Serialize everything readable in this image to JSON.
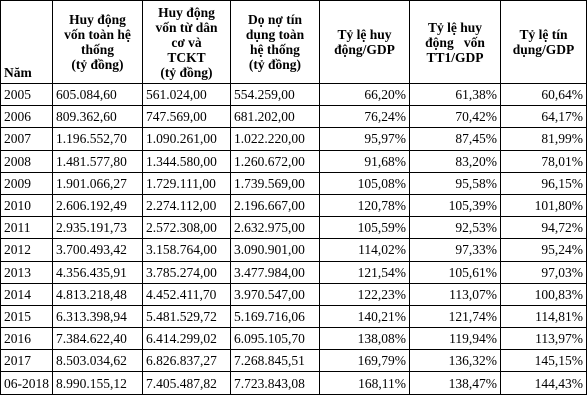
{
  "table": {
    "headers": [
      "Năm",
      "Huy động vốn toàn hệ thống (tỷ đồng)",
      "Huy động vốn từ dân cơ và TCKT (tỷ đồng)",
      "Dọ nợ tín dụng toàn hệ thống (tỷ đồng)",
      "Tỷ lệ huy động/GDP",
      "Tỷ lệ huy động vốn TT1/GDP",
      "Tỷ lệ tín dụng/GDP"
    ],
    "header_lines": [
      [
        "Năm"
      ],
      [
        "Huy động",
        "vốn toàn hệ",
        "thống",
        "(tỷ đồng)"
      ],
      [
        "Huy động",
        "vốn từ dân",
        "cơ và",
        "TCKT",
        "(tỷ đồng)"
      ],
      [
        "Dọ nợ tín",
        "dụng toàn",
        "hệ thống",
        "(tỷ đồng)"
      ],
      [
        "Tỷ lệ huy",
        "động/GDP"
      ],
      [
        "Tỷ lệ huy",
        "động   vốn",
        "TT1/GDP"
      ],
      [
        "Tỷ lệ tín",
        "dụng/GDP"
      ]
    ],
    "rows": [
      [
        "2005",
        "605.084,60",
        "561.024,00",
        "554.259,00",
        "66,20%",
        "61,38%",
        "60,64%"
      ],
      [
        "2006",
        "809.362,60",
        "747.569,00",
        "681.202,00",
        "76,24%",
        "70,42%",
        "64,17%"
      ],
      [
        "2007",
        "1.196.552,70",
        "1.090.261,00",
        "1.022.220,00",
        "95,97%",
        "87,45%",
        "81,99%"
      ],
      [
        "2008",
        "1.481.577,80",
        "1.344.580,00",
        "1.260.672,00",
        "91,68%",
        "83,20%",
        "78,01%"
      ],
      [
        "2009",
        "1.901.066,27",
        "1.729.111,00",
        "1.739.569,00",
        "105,08%",
        "95,58%",
        "96,15%"
      ],
      [
        "2010",
        "2.606.192,49",
        "2.274.112,00",
        "2.196.667,00",
        "120,78%",
        "105,39%",
        "101,80%"
      ],
      [
        "2011",
        "2.935.191,73",
        "2.572.308,00",
        "2.632.975,00",
        "105,59%",
        "92,53%",
        "94,72%"
      ],
      [
        "2012",
        "3.700.493,42",
        "3.158.764,00",
        "3.090.901,00",
        "114,02%",
        "97,33%",
        "95,24%"
      ],
      [
        "2013",
        "4.356.435,91",
        "3.785.274,00",
        "3.477.984,00",
        "121,54%",
        "105,61%",
        "97,03%"
      ],
      [
        "2014",
        "4.813.218,48",
        "4.452.411,70",
        "3.970.547,00",
        "122,23%",
        "113,07%",
        "100,83%"
      ],
      [
        "2015",
        "6.313.398,94",
        "5.481.529,72",
        "5.169.716,06",
        "140,21%",
        "121,74%",
        "114,81%"
      ],
      [
        "2016",
        "7.384.622,40",
        "6.414.299,02",
        "6.095.105,70",
        "138,08%",
        "119,94%",
        "113,97%"
      ],
      [
        "2017",
        "8.503.034,62",
        "6.826.837,27",
        "7.268.845,51",
        "169,79%",
        "136,32%",
        "145,15%"
      ],
      [
        "06-2018",
        "8.990.155,12",
        "7.405.487,82",
        "7.723.843,08",
        "168,11%",
        "138,47%",
        "144,43%"
      ]
    ]
  }
}
